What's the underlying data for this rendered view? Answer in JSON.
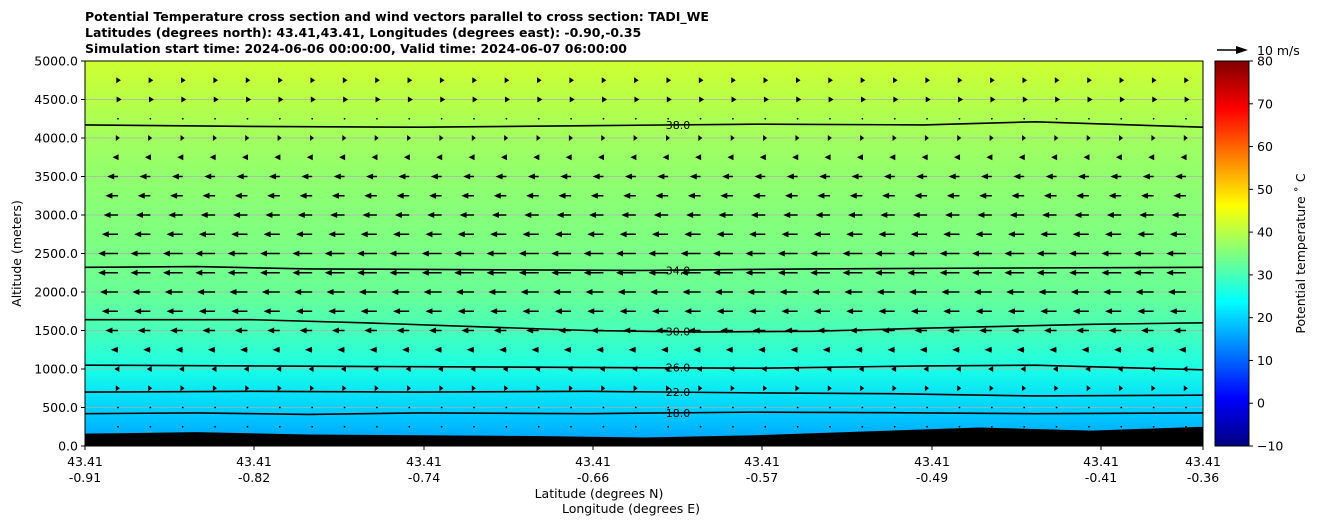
{
  "chart_data": {
    "type": "heatmap",
    "title_lines": [
      "Potential Temperature cross section and wind vectors parallel to cross section: TADI_WE",
      "Latitudes (degrees north): 43.41,43.41, Longitudes (degrees east): -0.90,-0.35",
      "Simulation start time: 2024-06-06 00:00:00, Valid time: 2024-06-07 06:00:00"
    ],
    "ylabel": "Altitude (meters)",
    "xlabel_lines": [
      "Latitude (degrees N)",
      "Longitude (degrees E)"
    ],
    "ylim": [
      0,
      5000
    ],
    "y_ticks": [
      "0.0",
      "500.0",
      "1000.0",
      "1500.0",
      "2000.0",
      "2500.0",
      "3000.0",
      "3500.0",
      "4000.0",
      "4500.0",
      "5000.0"
    ],
    "x_ticks": [
      {
        "lat": "43.41",
        "lon": "-0.91"
      },
      {
        "lat": "43.41",
        "lon": "-0.82"
      },
      {
        "lat": "43.41",
        "lon": "-0.74"
      },
      {
        "lat": "43.41",
        "lon": "-0.66"
      },
      {
        "lat": "43.41",
        "lon": "-0.57"
      },
      {
        "lat": "43.41",
        "lon": "-0.49"
      },
      {
        "lat": "43.41",
        "lon": "-0.41"
      },
      {
        "lat": "43.41",
        "lon": "-0.36"
      }
    ],
    "colorbar": {
      "label": "Potential temperature $^\\circ$C",
      "label_display": "Potential temperature ˚ C",
      "range": [
        -10,
        80
      ],
      "ticks": [
        "−10",
        "0",
        "10",
        "20",
        "30",
        "40",
        "50",
        "60",
        "70",
        "80"
      ],
      "colormap": "jet"
    },
    "wind_key": "10 m/s",
    "grid": "horizontal",
    "color_field_profile": [
      {
        "altitude": 0,
        "temperature": 15
      },
      {
        "altitude": 500,
        "temperature": 20
      },
      {
        "altitude": 1000,
        "temperature": 26
      },
      {
        "altitude": 1500,
        "temperature": 30
      },
      {
        "altitude": 2000,
        "temperature": 33
      },
      {
        "altitude": 2500,
        "temperature": 34.5
      },
      {
        "altitude": 3000,
        "temperature": 35.5
      },
      {
        "altitude": 3500,
        "temperature": 36.5
      },
      {
        "altitude": 4000,
        "temperature": 38
      },
      {
        "altitude": 4500,
        "temperature": 40
      },
      {
        "altitude": 5000,
        "temperature": 42
      }
    ],
    "contours": [
      {
        "label": "18.0",
        "x_fraction": [
          0,
          0.1,
          0.2,
          0.3,
          0.45,
          0.6,
          0.75,
          0.85,
          1
        ],
        "altitude": [
          420,
          430,
          410,
          430,
          420,
          440,
          430,
          420,
          430
        ]
      },
      {
        "label": "22.0",
        "x_fraction": [
          0,
          0.15,
          0.3,
          0.45,
          0.6,
          0.72,
          0.85,
          1
        ],
        "altitude": [
          700,
          710,
          700,
          710,
          690,
          680,
          650,
          660
        ]
      },
      {
        "label": "26.0",
        "x_fraction": [
          0,
          0.15,
          0.3,
          0.45,
          0.6,
          0.75,
          0.85,
          1
        ],
        "altitude": [
          1050,
          1040,
          1030,
          1020,
          1010,
          1040,
          1050,
          990
        ]
      },
      {
        "label": "30.0",
        "x_fraction": [
          0,
          0.15,
          0.25,
          0.35,
          0.45,
          0.55,
          0.65,
          0.75,
          0.9,
          1
        ],
        "altitude": [
          1640,
          1640,
          1600,
          1550,
          1500,
          1480,
          1490,
          1530,
          1580,
          1600
        ]
      },
      {
        "label": "34.0",
        "x_fraction": [
          0,
          0.1,
          0.2,
          0.35,
          0.5,
          0.65,
          0.8,
          1
        ],
        "altitude": [
          2320,
          2330,
          2300,
          2290,
          2280,
          2300,
          2310,
          2320
        ]
      },
      {
        "label": "38.0",
        "x_fraction": [
          0,
          0.15,
          0.3,
          0.45,
          0.6,
          0.75,
          0.85,
          1
        ],
        "altitude": [
          4170,
          4150,
          4140,
          4160,
          4180,
          4170,
          4210,
          4140
        ]
      }
    ],
    "terrain": {
      "x_fraction": [
        0,
        0.1,
        0.2,
        0.3,
        0.4,
        0.5,
        0.6,
        0.7,
        0.8,
        0.9,
        1
      ],
      "altitude": [
        160,
        180,
        150,
        140,
        130,
        110,
        140,
        190,
        240,
        200,
        250
      ]
    },
    "wind_levels": [
      {
        "altitude": 250,
        "u": 0.2
      },
      {
        "altitude": 500,
        "u": 0.3
      },
      {
        "altitude": 750,
        "u": 0.5
      },
      {
        "altitude": 1000,
        "u": -1.0
      },
      {
        "altitude": 1250,
        "u": -2.0
      },
      {
        "altitude": 1500,
        "u": -3.5
      },
      {
        "altitude": 1750,
        "u": -4.5
      },
      {
        "altitude": 2000,
        "u": -5.0
      },
      {
        "altitude": 2250,
        "u": -5.5
      },
      {
        "altitude": 2500,
        "u": -5.5
      },
      {
        "altitude": 2750,
        "u": -4.5
      },
      {
        "altitude": 3000,
        "u": -4.0
      },
      {
        "altitude": 3250,
        "u": -3.5
      },
      {
        "altitude": 3500,
        "u": -3.0
      },
      {
        "altitude": 3750,
        "u": -1.5
      },
      {
        "altitude": 4000,
        "u": 0.5
      },
      {
        "altitude": 4250,
        "u": 0.2
      },
      {
        "altitude": 4500,
        "u": 1.0
      },
      {
        "altitude": 4750,
        "u": 0.8
      }
    ],
    "wind_columns": 34
  }
}
